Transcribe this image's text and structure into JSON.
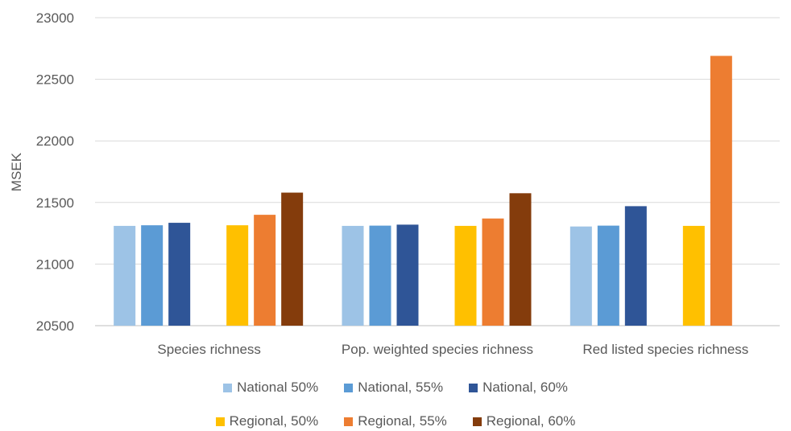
{
  "chart_data": {
    "type": "bar",
    "title": "",
    "xlabel": "",
    "ylabel": "MSEK",
    "ylim": [
      20500,
      23000
    ],
    "yticks": [
      20500,
      21000,
      21500,
      22000,
      22500,
      23000
    ],
    "grid": true,
    "legend_position": "bottom",
    "categories": [
      "Species richness",
      "Pop. weighted species richness",
      "Red listed species richness"
    ],
    "series": [
      {
        "name": "National 50%",
        "color": "#9DC3E6",
        "values": [
          21310,
          21310,
          21305
        ]
      },
      {
        "name": "National, 55%",
        "color": "#5B9BD5",
        "values": [
          21315,
          21312,
          21312
        ]
      },
      {
        "name": "National, 60%",
        "color": "#2F5597",
        "values": [
          21335,
          21320,
          21470
        ]
      },
      {
        "name": "Regional, 50%",
        "color": "#FFC000",
        "values": [
          21315,
          21310,
          21310
        ]
      },
      {
        "name": "Regional, 55%",
        "color": "#ED7D31",
        "values": [
          21400,
          21370,
          22690
        ]
      },
      {
        "name": "Regional, 60%",
        "color": "#843C0C",
        "values": [
          21580,
          21575,
          null
        ]
      }
    ]
  }
}
